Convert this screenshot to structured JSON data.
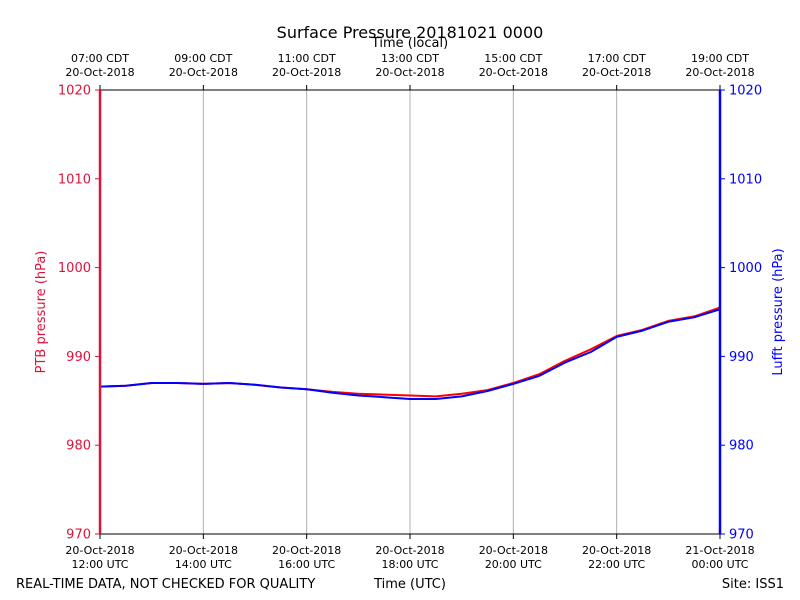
{
  "chart_data": {
    "type": "line",
    "title": "Surface Pressure 20181021 0000",
    "top_axis_label": "Time (local)",
    "xlabel": "Time (UTC)",
    "ylabel_left": "PTB pressure (hPa)",
    "ylabel_right": "Lufft pressure (hPa)",
    "ylim": [
      970,
      1020
    ],
    "y_ticks": [
      970,
      980,
      990,
      1000,
      1010,
      1020
    ],
    "xlim_hours": [
      12,
      24
    ],
    "grid": "vertical",
    "bottom_ticks": [
      {
        "hour": 12,
        "date": "20-Oct-2018",
        "time": "12:00 UTC"
      },
      {
        "hour": 14,
        "date": "20-Oct-2018",
        "time": "14:00 UTC"
      },
      {
        "hour": 16,
        "date": "20-Oct-2018",
        "time": "16:00 UTC"
      },
      {
        "hour": 18,
        "date": "20-Oct-2018",
        "time": "18:00 UTC"
      },
      {
        "hour": 20,
        "date": "20-Oct-2018",
        "time": "20:00 UTC"
      },
      {
        "hour": 22,
        "date": "20-Oct-2018",
        "time": "22:00 UTC"
      },
      {
        "hour": 24,
        "date": "21-Oct-2018",
        "time": "00:00 UTC"
      }
    ],
    "top_ticks": [
      {
        "hour": 12,
        "time": "07:00 CDT",
        "date": "20-Oct-2018"
      },
      {
        "hour": 14,
        "time": "09:00 CDT",
        "date": "20-Oct-2018"
      },
      {
        "hour": 16,
        "time": "11:00 CDT",
        "date": "20-Oct-2018"
      },
      {
        "hour": 18,
        "time": "13:00 CDT",
        "date": "20-Oct-2018"
      },
      {
        "hour": 20,
        "time": "15:00 CDT",
        "date": "20-Oct-2018"
      },
      {
        "hour": 22,
        "time": "17:00 CDT",
        "date": "20-Oct-2018"
      },
      {
        "hour": 24,
        "time": "19:00 CDT",
        "date": "20-Oct-2018"
      }
    ],
    "series": [
      {
        "name": "PTB pressure",
        "color": "#ff0000",
        "x_hours": [
          12.0,
          12.5,
          13.0,
          13.5,
          14.0,
          14.5,
          15.0,
          15.5,
          16.0,
          16.5,
          17.0,
          17.5,
          18.0,
          18.5,
          19.0,
          19.5,
          20.0,
          20.5,
          21.0,
          21.5,
          22.0,
          22.5,
          23.0,
          23.5,
          24.0
        ],
        "values": [
          986.6,
          986.7,
          987.0,
          987.0,
          986.9,
          987.0,
          986.8,
          986.5,
          986.3,
          986.0,
          985.8,
          985.7,
          985.6,
          985.5,
          985.8,
          986.2,
          987.0,
          988.0,
          989.5,
          990.8,
          992.3,
          993.0,
          994.0,
          994.5,
          995.5
        ]
      },
      {
        "name": "Lufft pressure",
        "color": "#0000ff",
        "x_hours": [
          12.0,
          12.5,
          13.0,
          13.5,
          14.0,
          14.5,
          15.0,
          15.5,
          16.0,
          16.5,
          17.0,
          17.5,
          18.0,
          18.5,
          19.0,
          19.5,
          20.0,
          20.5,
          21.0,
          21.5,
          22.0,
          22.5,
          23.0,
          23.5,
          24.0
        ],
        "values": [
          986.6,
          986.7,
          987.0,
          987.0,
          986.9,
          987.0,
          986.8,
          986.5,
          986.3,
          985.9,
          985.6,
          985.4,
          985.2,
          985.2,
          985.5,
          986.1,
          986.9,
          987.8,
          989.3,
          990.5,
          992.2,
          992.9,
          993.9,
          994.4,
          995.3
        ]
      }
    ]
  },
  "footer": {
    "left": "REAL-TIME DATA, NOT CHECKED FOR QUALITY",
    "site": "Site: ISS1"
  },
  "colors": {
    "left_axis": "#dc143c",
    "right_axis": "#0000ff",
    "grid": "#b0b0b0"
  }
}
